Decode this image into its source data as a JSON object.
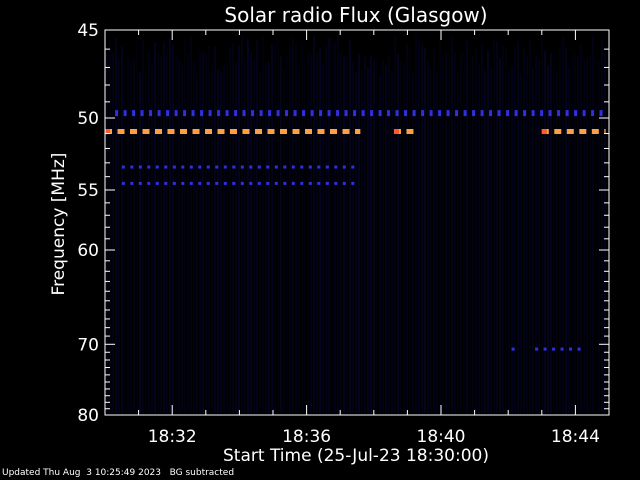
{
  "chart_data": {
    "type": "heatmap",
    "title": "Solar radio Flux (Glasgow)",
    "xlabel": "Start Time (25-Jul-23 18:30:00)",
    "ylabel": "Frequency [MHz]",
    "x_tick_labels": [
      "18:32",
      "18:36",
      "18:40",
      "18:44"
    ],
    "x_tick_minutes": [
      2,
      6,
      10,
      14
    ],
    "xlim_minutes": [
      0,
      15
    ],
    "y_tick_labels": [
      "45",
      "50",
      "55",
      "60",
      "70",
      "80"
    ],
    "y_tick_values": [
      45,
      50,
      55,
      60,
      70,
      80
    ],
    "ylim": [
      45,
      80
    ],
    "y_scale": "reciprocal",
    "grid": false,
    "emission_bands": [
      {
        "freq_mhz": 50.9,
        "level": "strong",
        "minute_ranges": [
          [
            0.0,
            7.6
          ],
          [
            8.6,
            9.2
          ],
          [
            13.0,
            14.9
          ]
        ]
      },
      {
        "freq_mhz": 49.6,
        "level": "weak",
        "minute_ranges": [
          [
            0.3,
            14.9
          ]
        ]
      },
      {
        "freq_mhz": 53.3,
        "level": "weak",
        "minute_ranges": [
          [
            0.5,
            7.5
          ]
        ]
      },
      {
        "freq_mhz": 54.5,
        "level": "weak",
        "minute_ranges": [
          [
            0.5,
            7.5
          ]
        ]
      },
      {
        "freq_mhz": 70.6,
        "level": "weak",
        "minute_ranges": [
          [
            12.1,
            12.2
          ],
          [
            12.8,
            14.2
          ]
        ]
      }
    ],
    "colors": {
      "background": "#000000",
      "strong_edge": "#ff5a2a",
      "strong_core": "#ffa040",
      "weak": "#3030e0",
      "noise": "#0a0a50"
    }
  },
  "footer": {
    "updated": "Updated Thu Aug  3 10:25:49 2023",
    "note": "BG subtracted"
  }
}
